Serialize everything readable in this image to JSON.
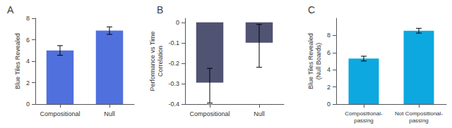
{
  "chart_data": [
    {
      "type": "bar",
      "title": "A",
      "categories": [
        "Compositional",
        "Null"
      ],
      "values": [
        5.0,
        6.85
      ],
      "errors": [
        0.45,
        0.35
      ],
      "ylabel": "Blue Tiles Revealed",
      "ylim": [
        0,
        8
      ],
      "yticks": [
        0,
        2,
        4,
        6,
        8
      ],
      "grid": false
    },
    {
      "type": "bar",
      "title": "B",
      "categories": [
        "Compositional",
        "Null"
      ],
      "values": [
        -0.295,
        -0.1
      ],
      "errors_lower": [
        0.1,
        0.12
      ],
      "errors_upper": [
        0.07,
        0.09
      ],
      "ylabel": "Performance vs Time\nCorrelation",
      "ylim": [
        -0.4,
        0.02
      ],
      "yticks": [
        -0.4,
        -0.3,
        -0.2,
        -0.1,
        0
      ],
      "grid": false
    },
    {
      "type": "bar",
      "title": "C",
      "categories": [
        "Compositional-\npassing",
        "Not Compositional-\npassing"
      ],
      "values": [
        5.3,
        8.55
      ],
      "errors": [
        0.28,
        0.28
      ],
      "ylabel": "Blue Tiles Revealed\n(Null Boards)",
      "ylim": [
        0,
        10
      ],
      "yticks": [
        0,
        2,
        4,
        6,
        8
      ],
      "grid": false
    }
  ]
}
